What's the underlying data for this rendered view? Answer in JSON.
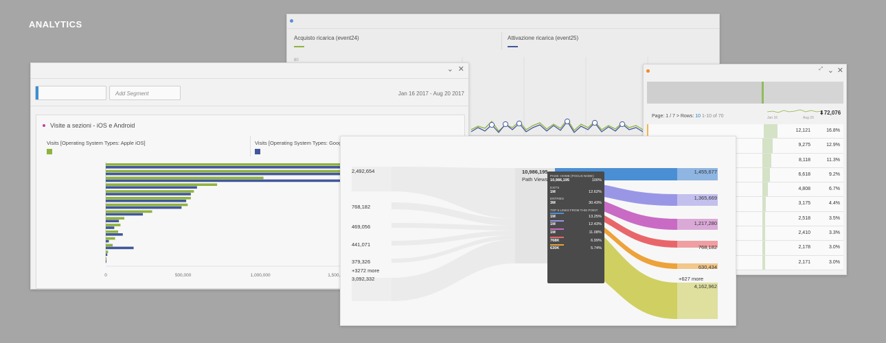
{
  "heading": "ANALYTICS",
  "window_line": {
    "legend": [
      {
        "label": "Acquisto ricarica (event24)",
        "color": "#8fb23e"
      },
      {
        "label": "Attivazione ricarica (event25)",
        "color": "#41579b"
      }
    ],
    "ytick": "80"
  },
  "window_bar": {
    "segment_placeholder": "Add Segment",
    "date_range": "Jan 16 2017 - Aug 20 2017",
    "panel_title": "Visite a sezioni - iOS e Android",
    "columns": [
      {
        "label": "Visits [Operating System Types: Apple iOS]",
        "color": "#8fb23e"
      },
      {
        "label": "Visits [Operating System Types: Googl",
        "color": "#41579b"
      }
    ],
    "chart_data": {
      "type": "bar",
      "orientation": "horizontal",
      "xticks": [
        "0",
        "500,000",
        "1,000,000",
        "1,500,000"
      ],
      "xlim": [
        0,
        1950000
      ],
      "series": [
        {
          "name": "Visits [Operating System Types: Apple iOS]",
          "values": [
            1950000,
            1950000,
            1020000,
            720000,
            570000,
            550000,
            530000,
            300000,
            120000,
            95000,
            80000,
            60000,
            45000,
            15000,
            5000
          ]
        },
        {
          "name": "Visits [Operating System Types: Googl",
          "values": [
            1950000,
            1950000,
            1930000,
            590000,
            550000,
            520000,
            490000,
            240000,
            85000,
            55000,
            110000,
            20000,
            180000,
            10000,
            2000
          ]
        }
      ]
    }
  },
  "window_table": {
    "pager": {
      "page": "Page: 1 / 7",
      "rows_label": "Rows:",
      "rows_value": "10",
      "range": "1-10 of 70"
    },
    "spark_labels": [
      "Jan 16",
      "Aug 20"
    ],
    "total": "72,076",
    "rows": [
      {
        "value": "12,121",
        "pct": "16.8%",
        "share": 0.168
      },
      {
        "value": "9,275",
        "pct": "12.9%",
        "share": 0.129
      },
      {
        "value": "8,118",
        "pct": "11.3%",
        "share": 0.113
      },
      {
        "value": "6,618",
        "pct": "9.2%",
        "share": 0.092
      },
      {
        "value": "4,808",
        "pct": "6.7%",
        "share": 0.067
      },
      {
        "value": "3,175",
        "pct": "4.4%",
        "share": 0.044
      },
      {
        "value": "2,518",
        "pct": "3.5%",
        "share": 0.035
      },
      {
        "value": "2,410",
        "pct": "3.3%",
        "share": 0.033
      },
      {
        "value": "2,178",
        "pct": "3.0%",
        "share": 0.03
      },
      {
        "value": "2,171",
        "pct": "3.0%",
        "share": 0.03
      }
    ]
  },
  "window_flow": {
    "left_labels": [
      "2,492,654",
      "768,182",
      "469,056",
      "441,071",
      "379,326",
      "+3272 more",
      "3,092,332"
    ],
    "focus_value": "10,986,195",
    "focus_label": "Path Views",
    "right_labels": [
      "1,455,677",
      "1,365,669",
      "1,217,280",
      "768,182",
      "630,434",
      "+627 more",
      "4,162,962"
    ],
    "right_colors": [
      "#4a8fd4",
      "#9a96e6",
      "#c96bc4",
      "#e8666a",
      "#eda23a",
      "#cfd061"
    ],
    "tooltip": {
      "title": "PAGE: HOME (FOCUS NODE)",
      "title_value": "10,986,195",
      "title_pct": "100%",
      "exits_label": "EXITS",
      "exits_value": "1M",
      "exits_pct": "12.62%",
      "entries_label": "ENTRIES",
      "entries_value": "3M",
      "entries_pct": "30.43%",
      "links_label": "TOP 5 LINKS FROM THIS POINT",
      "links": [
        {
          "value": "1M",
          "pct": "13.25%",
          "color": "#4a8fd4"
        },
        {
          "value": "1M",
          "pct": "12.43%",
          "color": "#9a96e6"
        },
        {
          "value": "1M",
          "pct": "11.08%",
          "color": "#c96bc4"
        },
        {
          "value": "768K",
          "pct": "6.99%",
          "color": "#e8666a"
        },
        {
          "value": "630K",
          "pct": "5.74%",
          "color": "#eda23a"
        }
      ]
    }
  },
  "icons": {
    "chevron": "⌄",
    "close": "✕",
    "arrow_down": "⬇",
    "arrow_right": ">"
  }
}
